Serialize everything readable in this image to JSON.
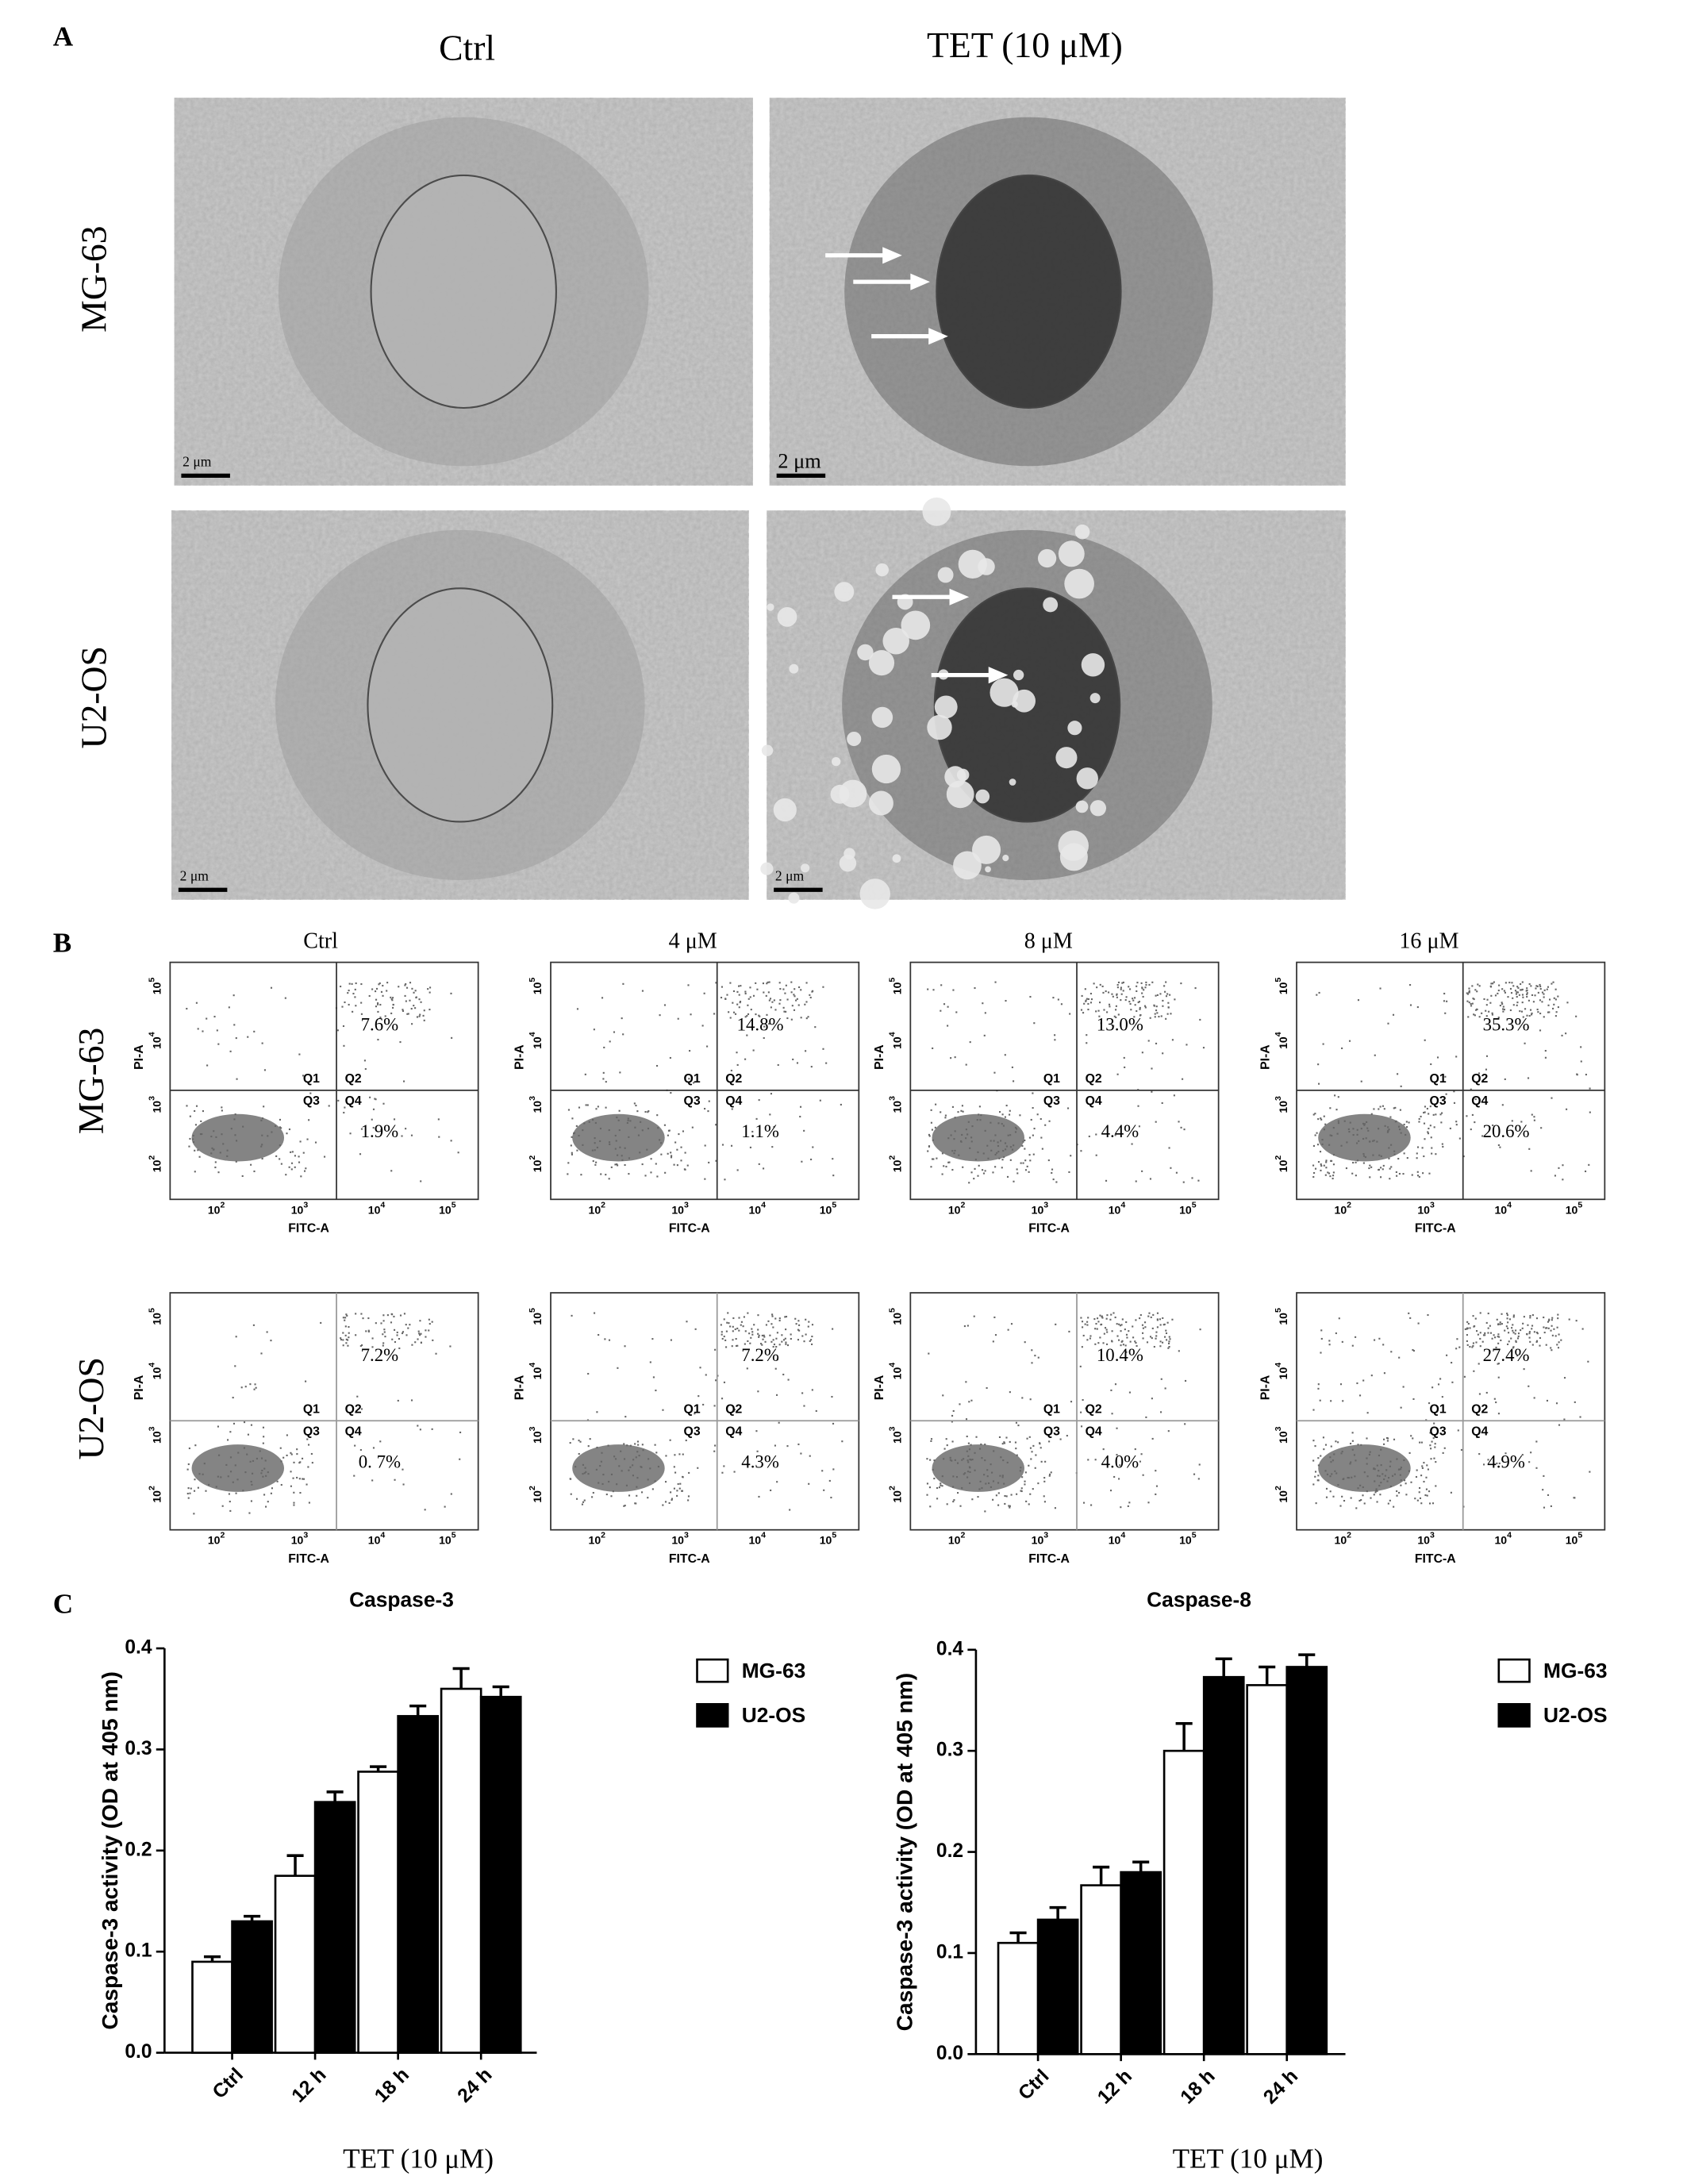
{
  "panel_labels": [
    "A",
    "B",
    "C"
  ],
  "micrographs": {
    "columns": [
      "Ctrl",
      "TET  (10 μM)"
    ],
    "rows": [
      "MG-63",
      "U2-OS"
    ],
    "scale_bar": "2 μm"
  },
  "flow": {
    "columns": [
      "Ctrl",
      "4 μM",
      "8 μM",
      "16 μM"
    ],
    "rows": [
      "MG-63",
      "U2-OS"
    ],
    "x_label": "FITC-A",
    "y_label": "PI-A",
    "tick_base": "10",
    "tick_exponents": [
      "2",
      "3",
      "4",
      "5"
    ],
    "quadrants": [
      "Q1",
      "Q2",
      "Q3",
      "Q4"
    ],
    "percentages": [
      [
        [
          "7.6%",
          "1.9%"
        ],
        [
          "14.8%",
          "1.1%"
        ],
        [
          "13.0%",
          "4.4%"
        ],
        [
          "35.3%",
          "20.6%"
        ]
      ],
      [
        [
          "7.2%",
          "0. 7%"
        ],
        [
          "7.2%",
          "4.3%"
        ],
        [
          "10.4%",
          "4.0%"
        ],
        [
          "27.4%",
          "4.9%"
        ]
      ]
    ]
  },
  "chart_data": [
    {
      "type": "bar",
      "title": "Caspase-3",
      "y_label": "Caspase-3 activity (OD at 405 nm)",
      "x_label": "TET (10 μM)",
      "categories": [
        "Ctrl",
        "12 h",
        "18 h",
        "24 h"
      ],
      "series": [
        {
          "name": "MG-63",
          "color": "#ffffff",
          "values": [
            0.09,
            0.175,
            0.278,
            0.36
          ],
          "errors": [
            0.005,
            0.02,
            0.005,
            0.02
          ]
        },
        {
          "name": "U2-OS",
          "color": "#000000",
          "values": [
            0.13,
            0.248,
            0.333,
            0.352
          ],
          "errors": [
            0.005,
            0.01,
            0.01,
            0.01
          ]
        }
      ],
      "ylim": [
        0,
        0.4
      ],
      "yticks": [
        {
          "value": 0,
          "label": "0.0"
        },
        0.1,
        0.2,
        0.3,
        0.4
      ]
    },
    {
      "type": "bar",
      "title": "Caspase-8",
      "y_label": "Caspase-3 activity (OD at 405 nm)",
      "x_label": "TET (10 μM)",
      "categories": [
        "Ctrl",
        "12 h",
        "18 h",
        "24 h"
      ],
      "series": [
        {
          "name": "MG-63",
          "color": "#ffffff",
          "values": [
            0.11,
            0.167,
            0.3,
            0.365
          ],
          "errors": [
            0.01,
            0.018,
            0.027,
            0.018
          ]
        },
        {
          "name": "U2-OS",
          "color": "#000000",
          "values": [
            0.133,
            0.18,
            0.373,
            0.383
          ],
          "errors": [
            0.012,
            0.01,
            0.018,
            0.012
          ]
        }
      ],
      "ylim": [
        0,
        0.4
      ],
      "yticks": [
        {
          "value": 0,
          "label": "0.0"
        },
        0.1,
        0.2,
        0.3,
        0.4
      ]
    }
  ]
}
